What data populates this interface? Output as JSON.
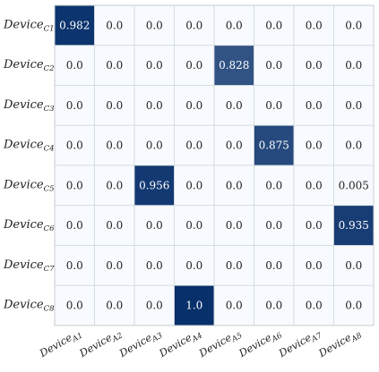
{
  "chart_data": {
    "type": "heatmap",
    "title": "",
    "xlabel": "",
    "ylabel": "",
    "x_labels": [
      {
        "base": "Device",
        "sub": "A1"
      },
      {
        "base": "Device",
        "sub": "A2"
      },
      {
        "base": "Device",
        "sub": "A3"
      },
      {
        "base": "Device",
        "sub": "A4"
      },
      {
        "base": "Device",
        "sub": "A5"
      },
      {
        "base": "Device",
        "sub": "A6"
      },
      {
        "base": "Device",
        "sub": "A7"
      },
      {
        "base": "Device",
        "sub": "A8"
      }
    ],
    "y_labels": [
      {
        "base": "Device",
        "sub": "C1"
      },
      {
        "base": "Device",
        "sub": "C2"
      },
      {
        "base": "Device",
        "sub": "C3"
      },
      {
        "base": "Device",
        "sub": "C4"
      },
      {
        "base": "Device",
        "sub": "C5"
      },
      {
        "base": "Device",
        "sub": "C6"
      },
      {
        "base": "Device",
        "sub": "C7"
      },
      {
        "base": "Device",
        "sub": "C8"
      }
    ],
    "cell_labels": [
      [
        "0.982",
        "0.0",
        "0.0",
        "0.0",
        "0.0",
        "0.0",
        "0.0",
        "0.0"
      ],
      [
        "0.0",
        "0.0",
        "0.0",
        "0.0",
        "0.828",
        "0.0",
        "0.0",
        "0.0"
      ],
      [
        "0.0",
        "0.0",
        "0.0",
        "0.0",
        "0.0",
        "0.0",
        "0.0",
        "0.0"
      ],
      [
        "0.0",
        "0.0",
        "0.0",
        "0.0",
        "0.0",
        "0.875",
        "0.0",
        "0.0"
      ],
      [
        "0.0",
        "0.0",
        "0.956",
        "0.0",
        "0.0",
        "0.0",
        "0.0",
        "0.005"
      ],
      [
        "0.0",
        "0.0",
        "0.0",
        "0.0",
        "0.0",
        "0.0",
        "0.0",
        "0.935"
      ],
      [
        "0.0",
        "0.0",
        "0.0",
        "0.0",
        "0.0",
        "0.0",
        "0.0",
        "0.0"
      ],
      [
        "0.0",
        "0.0",
        "0.0",
        "1.0",
        "0.0",
        "0.0",
        "0.0",
        "0.0"
      ]
    ],
    "values": [
      [
        0.982,
        0,
        0,
        0,
        0,
        0,
        0,
        0
      ],
      [
        0,
        0,
        0,
        0,
        0.828,
        0,
        0,
        0
      ],
      [
        0,
        0,
        0,
        0,
        0,
        0,
        0,
        0
      ],
      [
        0,
        0,
        0,
        0,
        0,
        0.875,
        0,
        0
      ],
      [
        0,
        0,
        0.956,
        0,
        0,
        0,
        0,
        0.005
      ],
      [
        0,
        0,
        0,
        0,
        0,
        0,
        0,
        0.935
      ],
      [
        0,
        0,
        0,
        0,
        0,
        0,
        0,
        0
      ],
      [
        0,
        0,
        0,
        1.0,
        0,
        0,
        0,
        0
      ]
    ],
    "colormap": {
      "low": "#f7fbff",
      "high": "#08306b"
    },
    "grid": true
  }
}
